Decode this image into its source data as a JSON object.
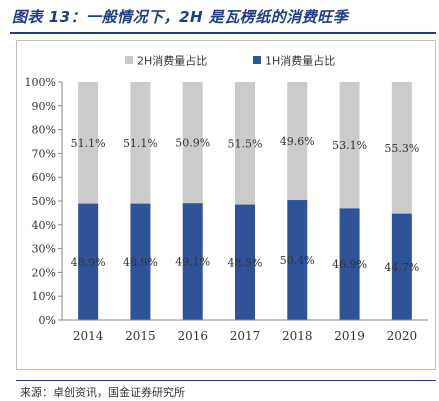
{
  "header": {
    "title": "图表 13：一般情况下，2H 是瓦楞纸的消费旺季"
  },
  "footer": {
    "source": "来源：卓创资讯，国金证券研究所"
  },
  "colors": {
    "h1": "#2e5399",
    "h2": "#cbcbcb",
    "title": "#1f3c88"
  },
  "chart_data": {
    "type": "bar",
    "stacked": true,
    "categories": [
      "2014",
      "2015",
      "2016",
      "2017",
      "2018",
      "2019",
      "2020"
    ],
    "series": [
      {
        "name": "1H消费量占比",
        "values": [
          48.9,
          48.9,
          49.1,
          48.5,
          50.4,
          46.9,
          44.7
        ],
        "labels": [
          "48.9%",
          "48.9%",
          "49.1%",
          "48.5%",
          "50.4%",
          "46.9%",
          "44.7%"
        ]
      },
      {
        "name": "2H消费量占比",
        "values": [
          51.1,
          51.1,
          50.9,
          51.5,
          49.6,
          53.1,
          55.3
        ],
        "labels": [
          "51.1%",
          "51.1%",
          "50.9%",
          "51.5%",
          "49.6%",
          "53.1%",
          "55.3%"
        ]
      }
    ],
    "ylim": [
      0,
      100
    ],
    "yticks": [
      "0%",
      "10%",
      "20%",
      "30%",
      "40%",
      "50%",
      "60%",
      "70%",
      "80%",
      "90%",
      "100%"
    ],
    "legend_position": "top",
    "grid": false
  }
}
